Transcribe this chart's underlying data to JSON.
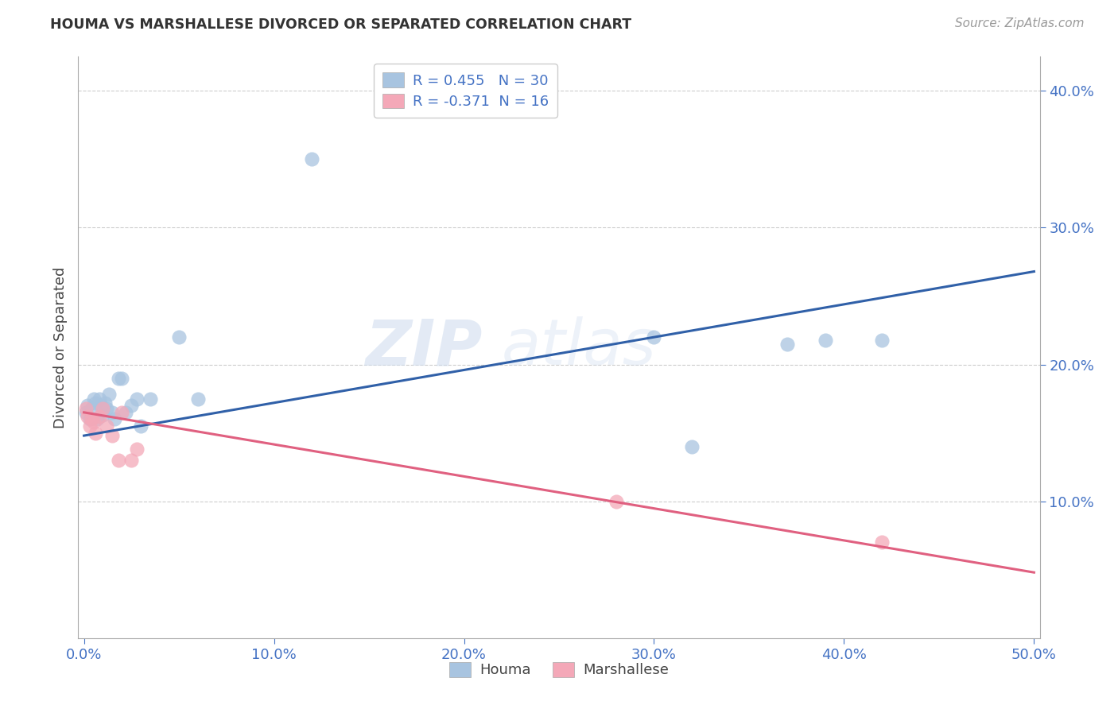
{
  "title": "HOUMA VS MARSHALLESE DIVORCED OR SEPARATED CORRELATION CHART",
  "source": "Source: ZipAtlas.com",
  "tick_color": "#4472c4",
  "ylabel": "Divorced or Separated",
  "houma_color": "#a8c4e0",
  "marshallese_color": "#f4a8b8",
  "houma_line_color": "#3060a8",
  "marshallese_line_color": "#e06080",
  "legend_label_houma": "R = 0.455   N = 30",
  "legend_label_marshallese": "R = -0.371  N = 16",
  "houma_x": [
    0.001,
    0.002,
    0.003,
    0.004,
    0.005,
    0.006,
    0.007,
    0.008,
    0.009,
    0.01,
    0.011,
    0.012,
    0.013,
    0.015,
    0.016,
    0.018,
    0.02,
    0.022,
    0.025,
    0.028,
    0.03,
    0.035,
    0.05,
    0.06,
    0.12,
    0.3,
    0.32,
    0.37,
    0.39,
    0.42
  ],
  "houma_y": [
    0.165,
    0.17,
    0.16,
    0.168,
    0.175,
    0.172,
    0.16,
    0.175,
    0.17,
    0.163,
    0.172,
    0.168,
    0.178,
    0.165,
    0.16,
    0.19,
    0.19,
    0.165,
    0.17,
    0.175,
    0.155,
    0.175,
    0.22,
    0.175,
    0.35,
    0.22,
    0.14,
    0.215,
    0.218,
    0.218
  ],
  "marshallese_x": [
    0.001,
    0.002,
    0.003,
    0.004,
    0.005,
    0.006,
    0.008,
    0.01,
    0.012,
    0.015,
    0.018,
    0.02,
    0.025,
    0.028,
    0.28,
    0.42
  ],
  "marshallese_y": [
    0.168,
    0.162,
    0.155,
    0.16,
    0.158,
    0.15,
    0.162,
    0.168,
    0.155,
    0.148,
    0.13,
    0.165,
    0.13,
    0.138,
    0.1,
    0.07
  ],
  "watermark": "ZIPatlas",
  "background_color": "#ffffff",
  "grid_color": "#cccccc",
  "xlim": [
    0.0,
    0.5
  ],
  "ylim": [
    0.0,
    0.42
  ],
  "x_ticks": [
    0.0,
    0.1,
    0.2,
    0.3,
    0.4,
    0.5
  ],
  "y_ticks_right": [
    0.1,
    0.2,
    0.3,
    0.4
  ],
  "houma_trend_x": [
    0.0,
    0.5
  ],
  "houma_trend_y": [
    0.148,
    0.268
  ],
  "marshallese_trend_x": [
    0.0,
    0.5
  ],
  "marshallese_trend_y": [
    0.165,
    0.048
  ]
}
